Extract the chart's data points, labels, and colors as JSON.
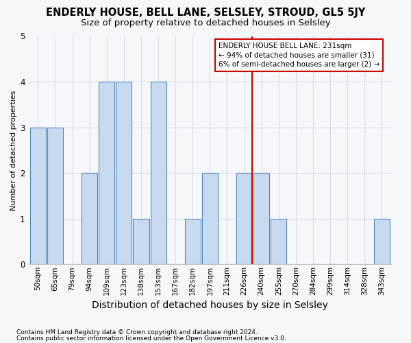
{
  "title": "ENDERLY HOUSE, BELL LANE, SELSLEY, STROUD, GL5 5JY",
  "subtitle": "Size of property relative to detached houses in Selsley",
  "xlabel": "Distribution of detached houses by size in Selsley",
  "ylabel": "Number of detached properties",
  "footnote1": "Contains HM Land Registry data © Crown copyright and database right 2024.",
  "footnote2": "Contains public sector information licensed under the Open Government Licence v3.0.",
  "bin_labels": [
    "50sqm",
    "65sqm",
    "79sqm",
    "94sqm",
    "109sqm",
    "123sqm",
    "138sqm",
    "153sqm",
    "167sqm",
    "182sqm",
    "197sqm",
    "211sqm",
    "226sqm",
    "240sqm",
    "255sqm",
    "270sqm",
    "284sqm",
    "299sqm",
    "314sqm",
    "328sqm",
    "343sqm"
  ],
  "bar_values": [
    3,
    3,
    0,
    2,
    4,
    4,
    1,
    4,
    0,
    1,
    2,
    0,
    2,
    2,
    1,
    0,
    0,
    0,
    0,
    0,
    1
  ],
  "bar_color": "#c8daf0",
  "bar_edgecolor": "#5588bb",
  "ylim": [
    0,
    5
  ],
  "yticks": [
    0,
    1,
    2,
    3,
    4,
    5
  ],
  "property_line_index": 12,
  "property_line_color": "#cc0000",
  "annotation_title": "ENDERLY HOUSE BELL LANE: 231sqm",
  "annotation_line1": "← 94% of detached houses are smaller (31)",
  "annotation_line2": "6% of semi-detached houses are larger (2) →",
  "annotation_box_facecolor": "#ffffff",
  "annotation_box_edgecolor": "#cc0000",
  "background_color": "#f5f7fa",
  "grid_color": "#d8dde8",
  "title_fontsize": 10.5,
  "subtitle_fontsize": 9.5,
  "xlabel_fontsize": 10,
  "ylabel_fontsize": 8,
  "tick_fontsize": 7.5,
  "annotation_fontsize": 7.5,
  "footnote_fontsize": 6.5
}
